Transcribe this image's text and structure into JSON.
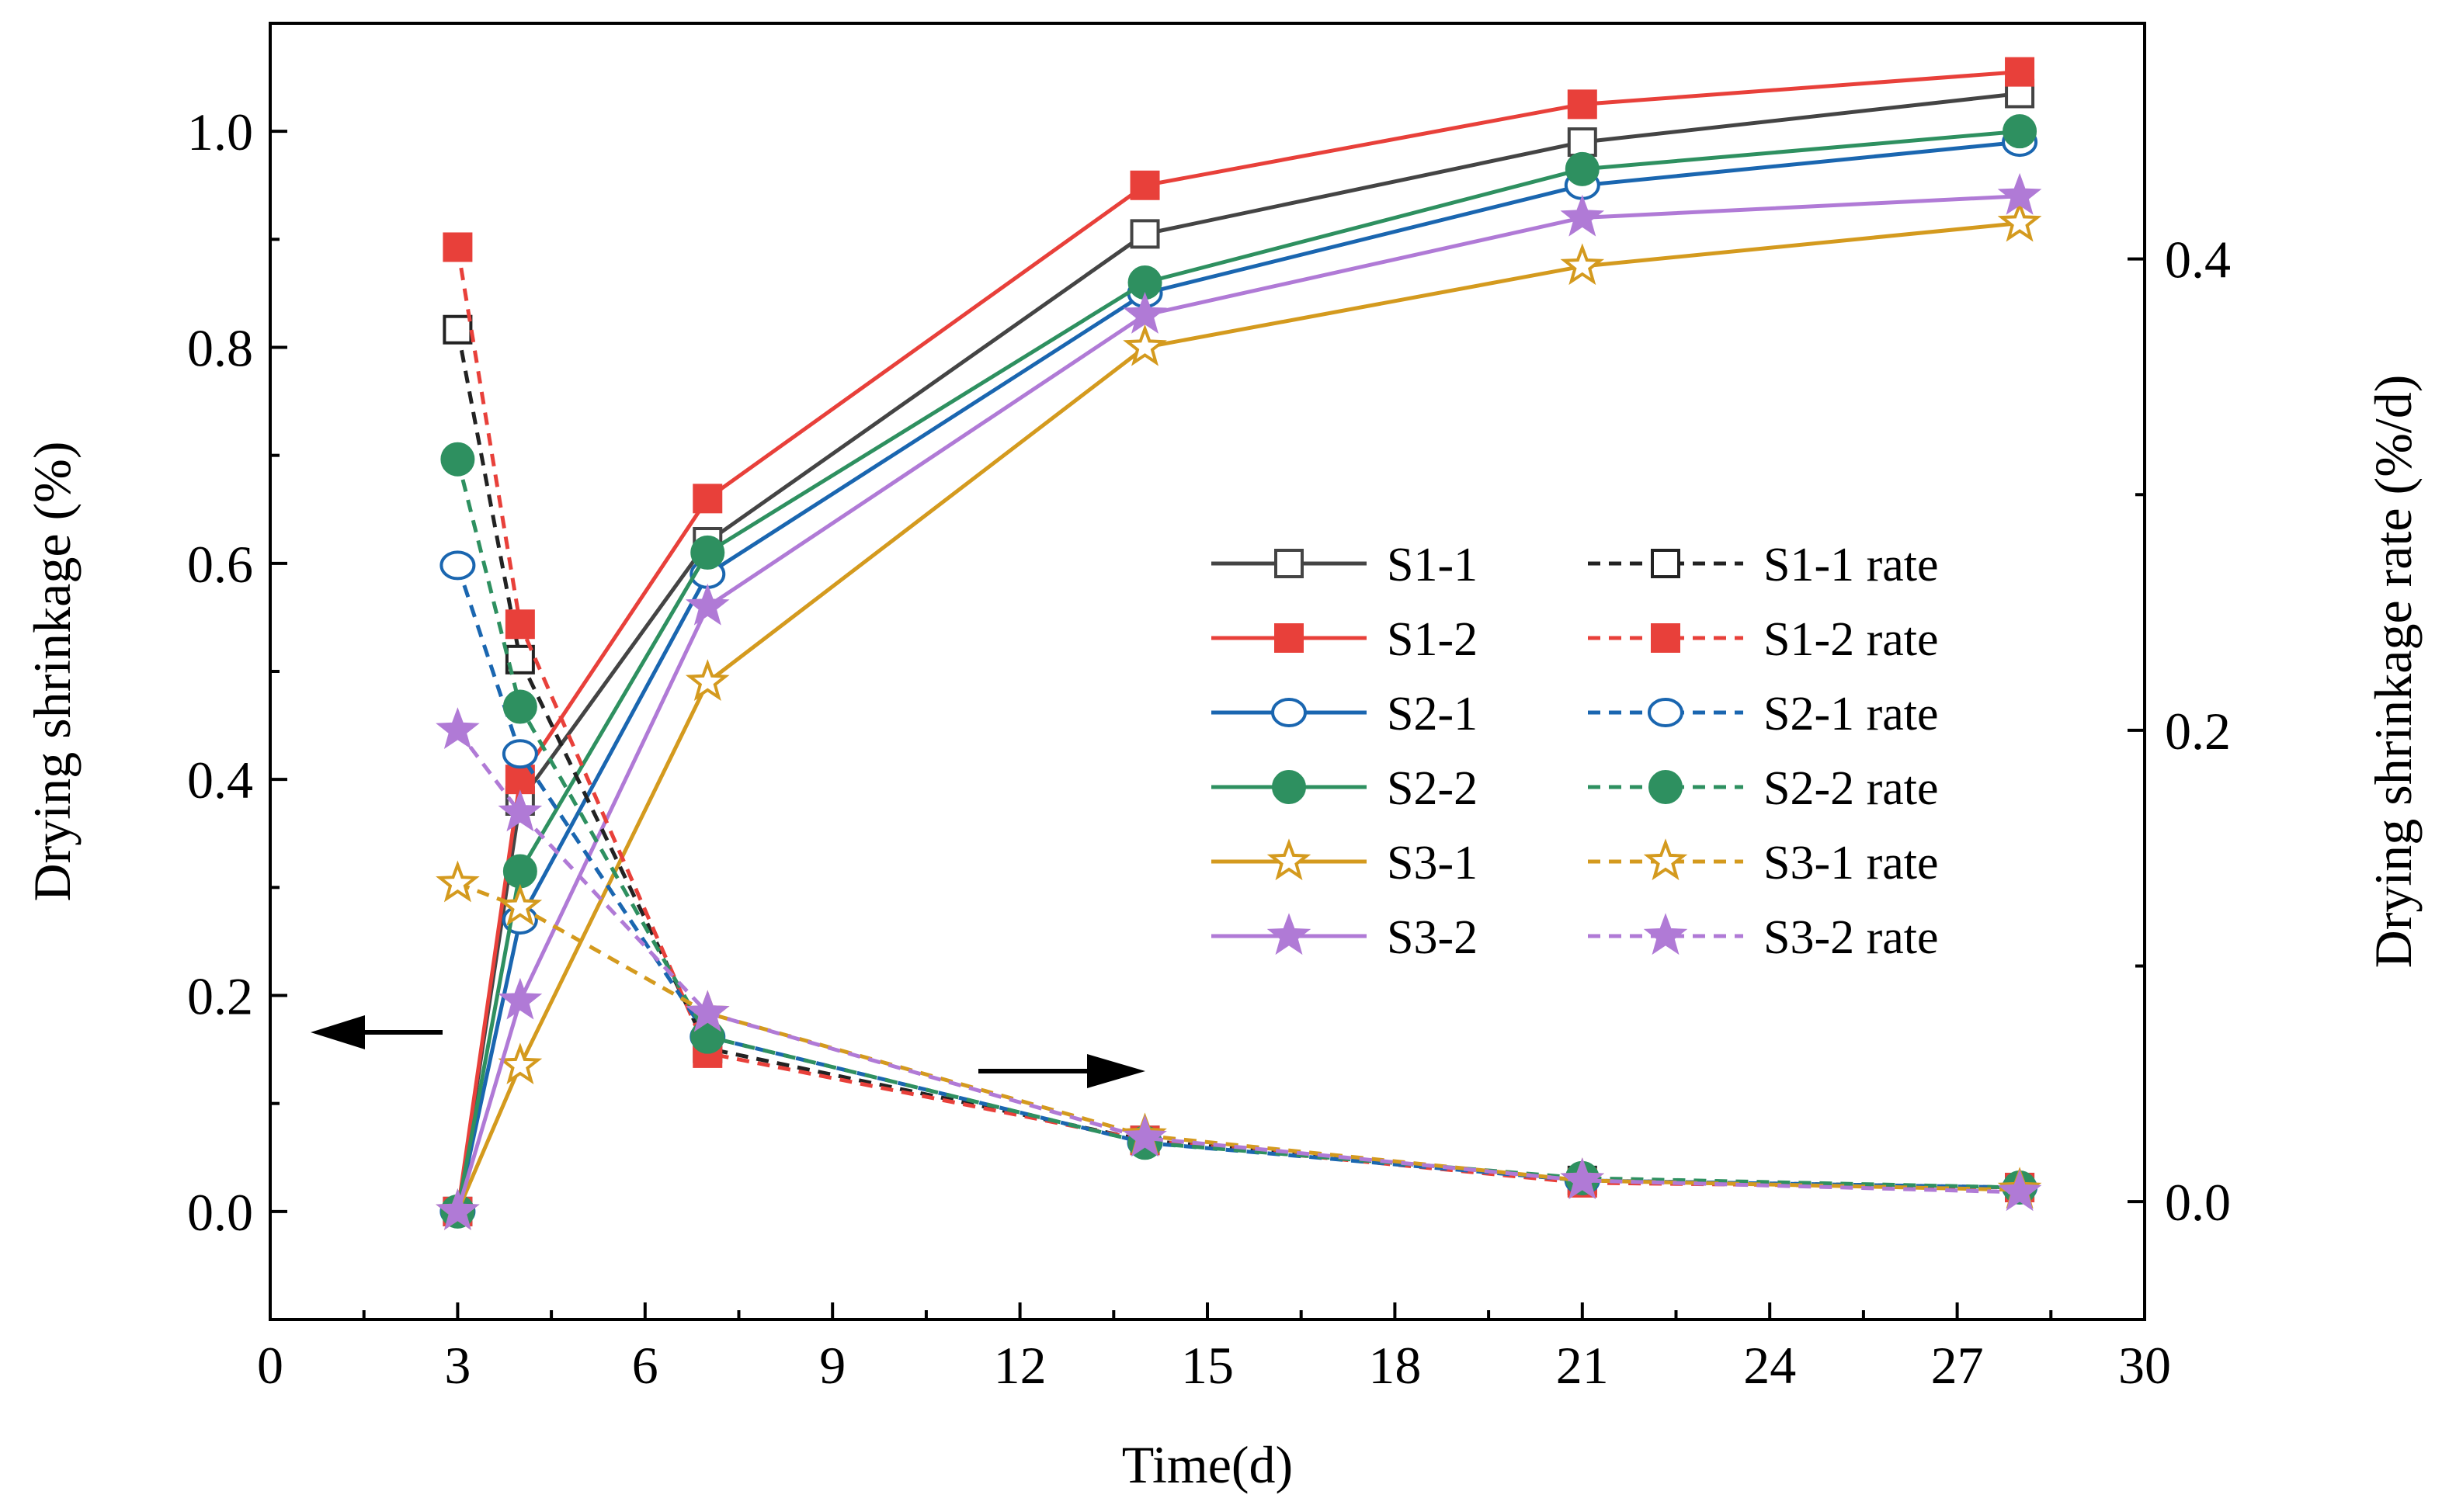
{
  "chart_data": {
    "type": "line",
    "xlabel": "Time(d)",
    "ylabel_left": "Drying shrinkage (%)",
    "ylabel_right": "Drying shrinkage rate (%/d)",
    "xlim": [
      0,
      30
    ],
    "ylim_left": [
      -0.1,
      1.1
    ],
    "ylim_right": [
      -0.05,
      0.5
    ],
    "x_ticks": [
      "0",
      "3",
      "6",
      "9",
      "12",
      "15",
      "18",
      "21",
      "24",
      "27",
      "30"
    ],
    "y_left_ticks": [
      "0.0",
      "0.2",
      "0.4",
      "0.6",
      "0.8",
      "1.0"
    ],
    "y_right_ticks": [
      "0.0",
      "0.2",
      "0.4"
    ],
    "grid": false,
    "legend_position": "center-right",
    "x": [
      3,
      4,
      7,
      14,
      21,
      28
    ],
    "series": [
      {
        "name": "S1-1",
        "axis": "left",
        "color": "#444444",
        "marker": "square-open",
        "dash": false,
        "values": [
          0,
          0.38,
          0.62,
          0.905,
          0.99,
          1.035
        ]
      },
      {
        "name": "S1-2",
        "axis": "left",
        "color": "#e8403a",
        "marker": "square-filled",
        "dash": false,
        "values": [
          0,
          0.4,
          0.66,
          0.95,
          1.025,
          1.055
        ]
      },
      {
        "name": "S2-1",
        "axis": "left",
        "color": "#1a66b0",
        "marker": "circle-open",
        "dash": false,
        "values": [
          0,
          0.27,
          0.59,
          0.85,
          0.95,
          0.99
        ]
      },
      {
        "name": "S2-2",
        "axis": "left",
        "color": "#2e9060",
        "marker": "circle-filled",
        "dash": false,
        "values": [
          0,
          0.315,
          0.61,
          0.86,
          0.965,
          1.0
        ]
      },
      {
        "name": "S3-1",
        "axis": "left",
        "color": "#d49a1e",
        "marker": "star-open",
        "dash": false,
        "values": [
          0,
          0.135,
          0.49,
          0.8,
          0.875,
          0.915
        ]
      },
      {
        "name": "S3-2",
        "axis": "left",
        "color": "#b07ad6",
        "marker": "star-filled",
        "dash": false,
        "values": [
          0,
          0.195,
          0.56,
          0.83,
          0.92,
          0.94
        ]
      },
      {
        "name": "S1-1 rate",
        "axis": "right",
        "color": "#222222",
        "marker": "square-open",
        "dash": true,
        "values": [
          0.37,
          0.23,
          0.065,
          0.026,
          0.009,
          0.006
        ]
      },
      {
        "name": "S1-2 rate",
        "axis": "right",
        "color": "#e8403a",
        "marker": "square-filled",
        "dash": true,
        "values": [
          0.405,
          0.245,
          0.063,
          0.026,
          0.008,
          0.006
        ]
      },
      {
        "name": "S2-1 rate",
        "axis": "right",
        "color": "#1a66b0",
        "marker": "circle-open",
        "dash": true,
        "values": [
          0.27,
          0.19,
          0.07,
          0.025,
          0.009,
          0.006
        ]
      },
      {
        "name": "S2-2 rate",
        "axis": "right",
        "color": "#2e9060",
        "marker": "circle-filled",
        "dash": true,
        "values": [
          0.315,
          0.21,
          0.07,
          0.025,
          0.01,
          0.006
        ]
      },
      {
        "name": "S3-1 rate",
        "axis": "right",
        "color": "#d49a1e",
        "marker": "star-open",
        "dash": true,
        "values": [
          0.135,
          0.125,
          0.08,
          0.028,
          0.009,
          0.005
        ]
      },
      {
        "name": "S3-2 rate",
        "axis": "right",
        "color": "#b07ad6",
        "marker": "star-filled",
        "dash": true,
        "values": [
          0.2,
          0.165,
          0.08,
          0.027,
          0.009,
          0.004
        ]
      }
    ]
  }
}
